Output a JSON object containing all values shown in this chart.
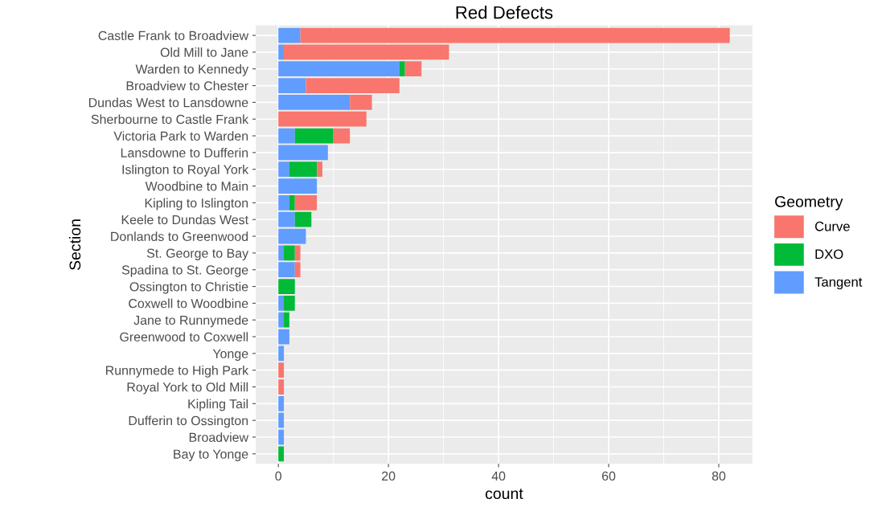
{
  "chart_data": {
    "type": "bar",
    "title": "Red Defects",
    "xlabel": "count",
    "ylabel": "Section",
    "legend_title": "Geometry",
    "orientation": "horizontal",
    "stacked": true,
    "grid": true,
    "legend": "right",
    "categories": [
      "Castle Frank to Broadview",
      "Old Mill to Jane",
      "Warden to Kennedy",
      "Broadview to Chester",
      "Dundas West to Lansdowne",
      "Sherbourne to Castle Frank",
      "Victoria Park to Warden",
      "Lansdowne to Dufferin",
      "Islington to Royal York",
      "Woodbine to Main",
      "Kipling to Islington",
      "Keele to Dundas West",
      "Donlands to Greenwood",
      "St. George to Bay",
      "Spadina to St. George",
      "Ossington to Christie",
      "Coxwell to Woodbine",
      "Jane to Runnymede",
      "Greenwood to Coxwell",
      "Yonge",
      "Runnymede to High Park",
      "Royal York to Old Mill",
      "Kipling Tail",
      "Dufferin to Ossington",
      "Broadview",
      "Bay to Yonge"
    ],
    "series": [
      {
        "name": "Tangent",
        "color": "#619cff",
        "values": [
          4,
          1,
          22,
          5,
          13,
          null,
          3,
          9,
          2,
          7,
          2,
          3,
          5,
          1,
          3,
          null,
          1,
          1,
          2,
          1,
          null,
          null,
          1,
          1,
          1,
          null
        ]
      },
      {
        "name": "DXO",
        "color": "#00ba38",
        "values": [
          null,
          null,
          1,
          null,
          null,
          null,
          7,
          null,
          5,
          null,
          1,
          3,
          null,
          2,
          null,
          3,
          2,
          1,
          null,
          null,
          null,
          null,
          null,
          null,
          null,
          1
        ]
      },
      {
        "name": "Curve",
        "color": "#f8766d",
        "values": [
          78,
          30,
          3,
          17,
          4,
          16,
          3,
          null,
          1,
          null,
          4,
          null,
          null,
          1,
          1,
          null,
          null,
          null,
          null,
          null,
          1,
          1,
          null,
          null,
          null,
          null
        ]
      }
    ],
    "xlim": [
      -4.1,
      86.1
    ],
    "xticks": [
      0,
      20,
      40,
      60,
      80
    ]
  }
}
